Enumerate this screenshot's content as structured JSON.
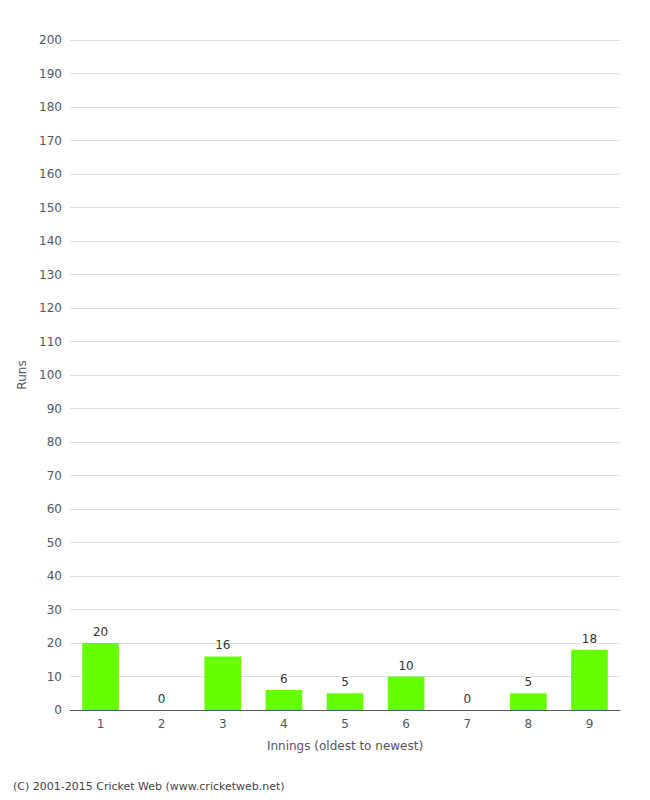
{
  "chart_data": {
    "type": "bar",
    "categories": [
      1,
      2,
      3,
      4,
      5,
      6,
      7,
      8,
      9
    ],
    "values": [
      20,
      0,
      16,
      6,
      5,
      10,
      0,
      5,
      18
    ],
    "color": "#66ff00",
    "xlabel": "Innings (oldest to newest)",
    "ylabel": "Runs",
    "ylim": [
      0,
      200
    ],
    "yticks": [
      0,
      10,
      20,
      30,
      40,
      50,
      60,
      70,
      80,
      90,
      100,
      110,
      120,
      130,
      140,
      150,
      160,
      170,
      180,
      190,
      200
    ],
    "grid": true,
    "data_labels": true,
    "footer": "(C) 2001-2015 Cricket Web (www.cricketweb.net)"
  }
}
